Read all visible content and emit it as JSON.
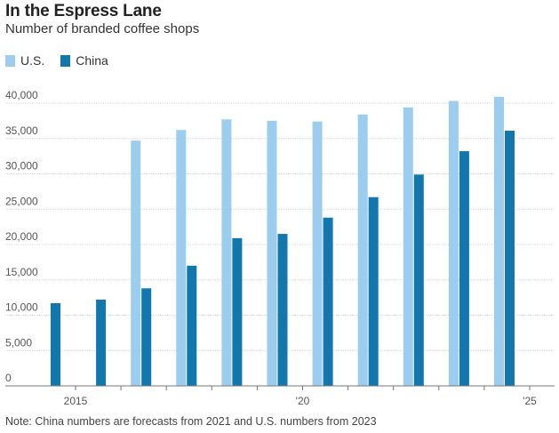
{
  "title": "In the Espress Lane",
  "subtitle": "Number of branded coffee shops",
  "note": "Note: China numbers are forecasts from 2021 and U.S. numbers from 2023",
  "colors": {
    "us": "#9ccdee",
    "china": "#1177ad"
  },
  "chart_data": {
    "type": "bar",
    "title": "In the Espress Lane",
    "subtitle": "Number of branded coffee shops",
    "categories": [
      "2015",
      "2016",
      "2017",
      "2018",
      "2019",
      "2020",
      "2021",
      "2022",
      "2023",
      "2024",
      "2025"
    ],
    "x_tick_labels": [
      {
        "category": "2015",
        "label": "2015"
      },
      {
        "category": "2020",
        "label": "'20"
      },
      {
        "category": "2025",
        "label": "'25"
      }
    ],
    "series": [
      {
        "name": "U.S.",
        "values": [
          null,
          null,
          34700,
          36200,
          37700,
          37500,
          37400,
          38400,
          39400,
          40300,
          40900
        ]
      },
      {
        "name": "China",
        "values": [
          11700,
          12200,
          13800,
          17000,
          20900,
          21500,
          23800,
          26700,
          29900,
          33200,
          36100
        ]
      }
    ],
    "ylim": [
      0,
      40000
    ],
    "y_ticks": [
      0,
      5000,
      10000,
      15000,
      20000,
      25000,
      30000,
      35000,
      40000
    ],
    "y_tick_labels": [
      "0",
      "5,000",
      "10,000",
      "15,000",
      "20,000",
      "25,000",
      "30,000",
      "35,000",
      "40,000"
    ],
    "grid": true,
    "legend_placement": "top-left"
  }
}
